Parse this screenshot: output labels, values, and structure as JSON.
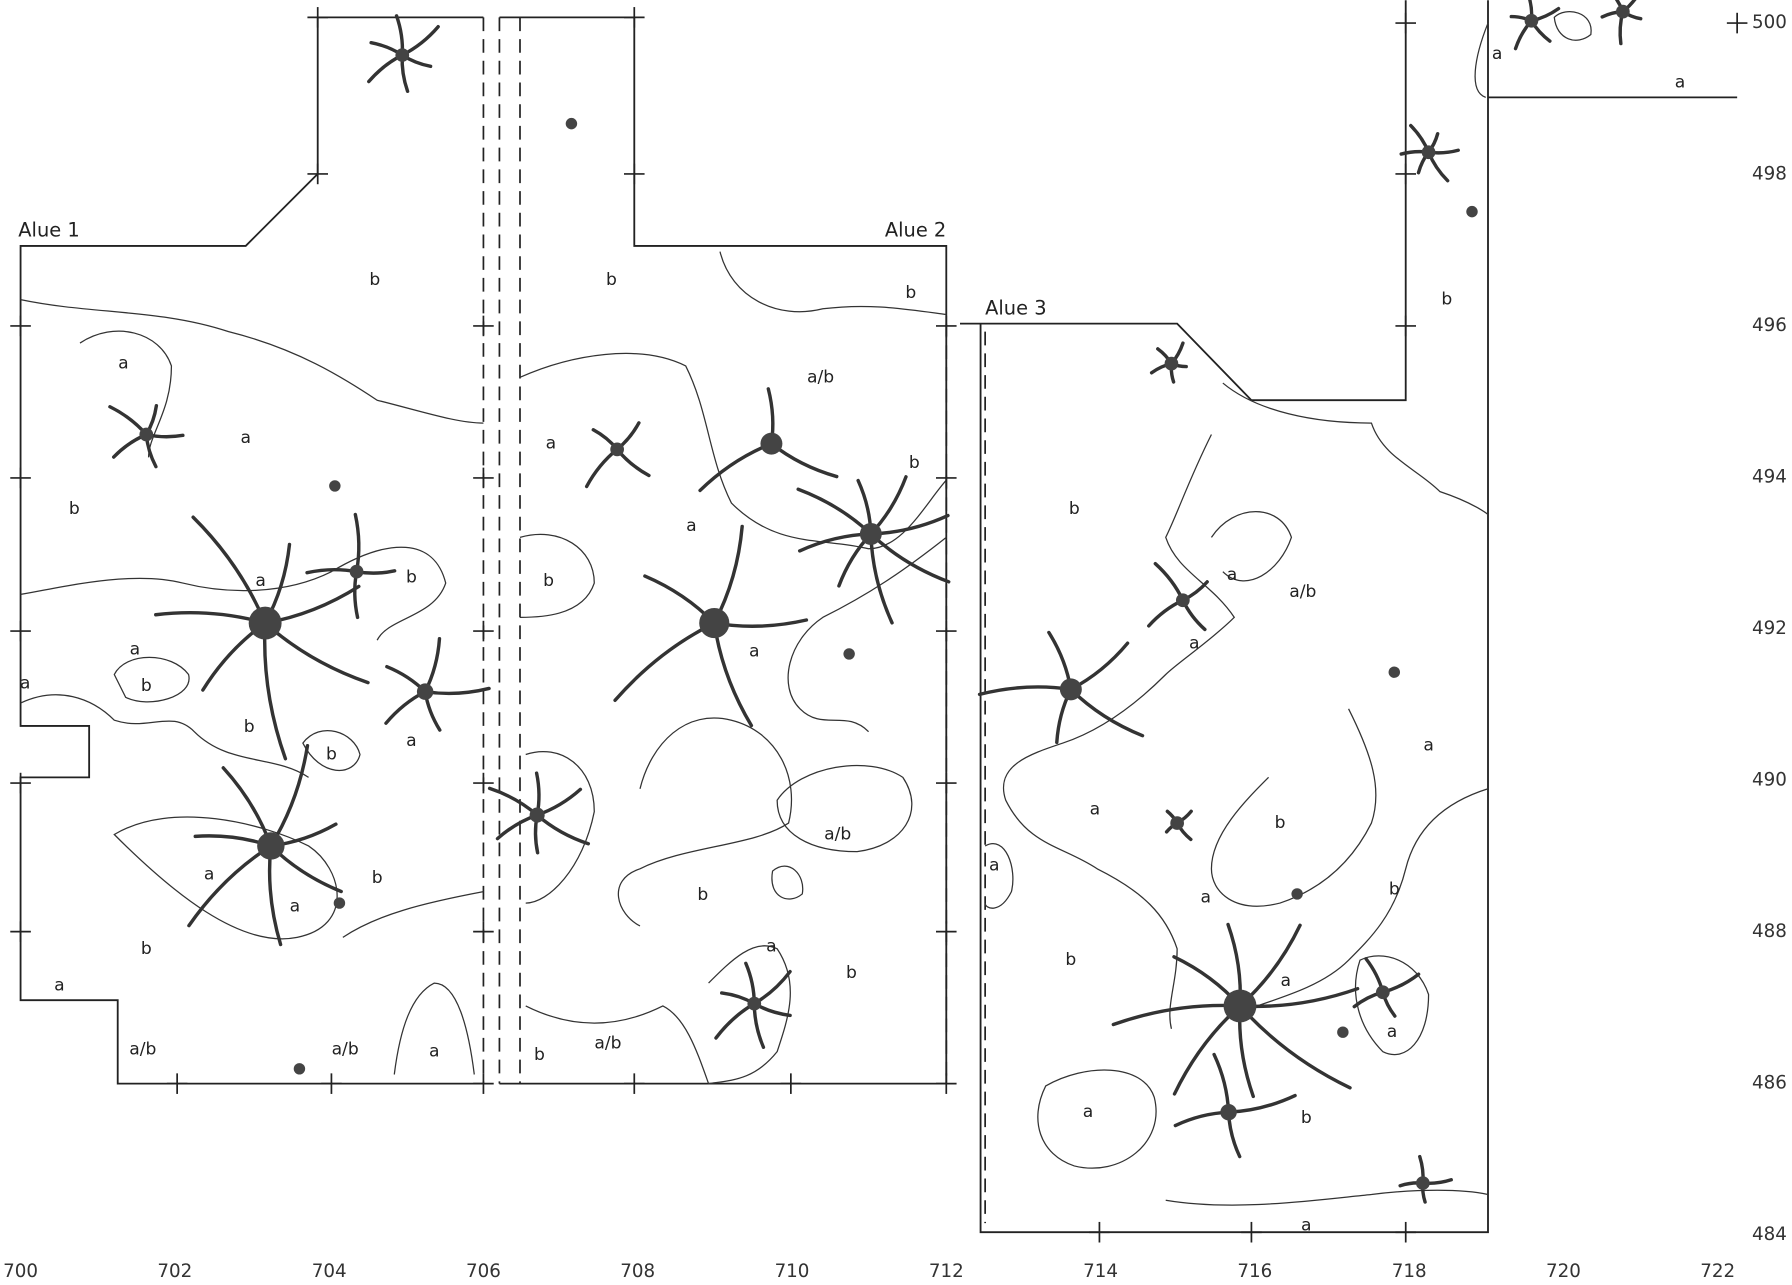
{
  "areas": [
    "Alue 1",
    "Alue 2",
    "Alue 3"
  ],
  "x_ticks": [
    700,
    702,
    704,
    706,
    708,
    710,
    712,
    714,
    716,
    718,
    720,
    722
  ],
  "y_ticks": [
    500,
    498,
    496,
    494,
    492,
    490,
    488,
    486,
    484
  ],
  "soil_labels": [
    "a",
    "b",
    "a",
    "b",
    "a",
    "b",
    "a",
    "b",
    "a",
    "b",
    "b",
    "a",
    "a",
    "b",
    "a",
    "b",
    "a",
    "a/b",
    "a/b",
    "a",
    "b",
    "b",
    "a/b",
    "a",
    "b",
    "a",
    "b",
    "a",
    "a/b",
    "b",
    "a",
    "b",
    "a/b",
    "b",
    "b",
    "a",
    "a/b",
    "a",
    "a",
    "a",
    "b",
    "a",
    "b",
    "a",
    "b",
    "a",
    "a",
    "a",
    "b",
    "a",
    "a",
    "a",
    "b"
  ]
}
